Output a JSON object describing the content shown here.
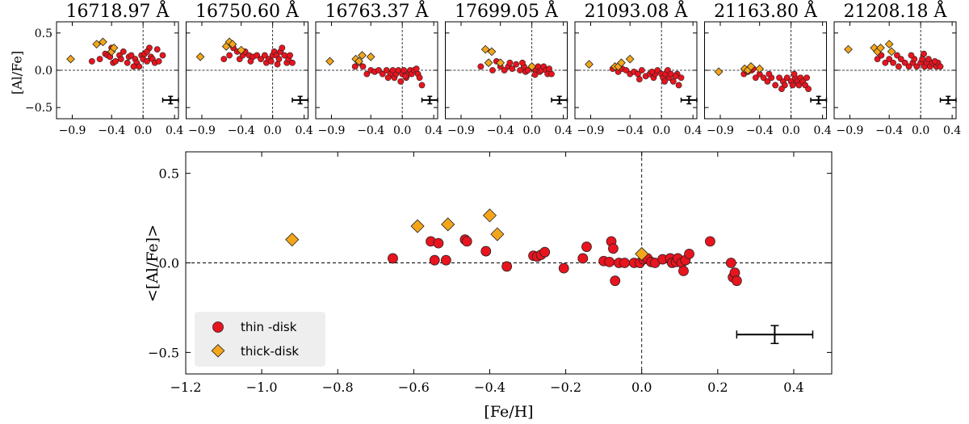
{
  "chart_data": {
    "type": "scatter",
    "colors": {
      "thin": "#e8141e",
      "thick": "#f4a61a",
      "edge": "#222222",
      "legend_bg": "#eeeeee"
    },
    "panels": [
      {
        "title": "16718.97 Å",
        "thin": [
          [
            -0.55,
            0.15
          ],
          [
            -0.48,
            0.22
          ],
          [
            -0.45,
            0.2
          ],
          [
            -0.42,
            0.18
          ],
          [
            -0.38,
            0.1
          ],
          [
            -0.35,
            0.12
          ],
          [
            -0.3,
            0.2
          ],
          [
            -0.28,
            0.15
          ],
          [
            -0.25,
            0.25
          ],
          [
            -0.2,
            0.1
          ],
          [
            -0.18,
            0.18
          ],
          [
            -0.15,
            0.2
          ],
          [
            -0.1,
            0.15
          ],
          [
            -0.08,
            0.1
          ],
          [
            -0.05,
            0.05
          ],
          [
            -0.02,
            0.2
          ],
          [
            0.0,
            0.15
          ],
          [
            0.02,
            0.22
          ],
          [
            0.05,
            0.12
          ],
          [
            0.08,
            0.3
          ],
          [
            0.1,
            0.18
          ],
          [
            0.12,
            0.15
          ],
          [
            0.15,
            0.1
          ],
          [
            0.2,
            0.12
          ],
          [
            0.25,
            0.2
          ],
          [
            -0.65,
            0.12
          ],
          [
            -0.4,
            0.3
          ],
          [
            -0.12,
            0.05
          ],
          [
            0.05,
            0.25
          ],
          [
            0.18,
            0.28
          ]
        ],
        "thick": [
          [
            -0.92,
            0.15
          ],
          [
            -0.59,
            0.35
          ],
          [
            -0.51,
            0.38
          ],
          [
            -0.4,
            0.25
          ],
          [
            -0.37,
            0.3
          ]
        ],
        "err": {
          "x": 0.35,
          "y": -0.4,
          "dx": 0.1,
          "dy": 0.05
        }
      },
      {
        "title": "16750.60 Å",
        "thin": [
          [
            -0.55,
            0.2
          ],
          [
            -0.5,
            0.3
          ],
          [
            -0.45,
            0.25
          ],
          [
            -0.42,
            0.15
          ],
          [
            -0.38,
            0.2
          ],
          [
            -0.35,
            0.25
          ],
          [
            -0.3,
            0.2
          ],
          [
            -0.25,
            0.18
          ],
          [
            -0.2,
            0.2
          ],
          [
            -0.15,
            0.15
          ],
          [
            -0.1,
            0.2
          ],
          [
            -0.08,
            0.1
          ],
          [
            -0.05,
            0.15
          ],
          [
            0.0,
            0.2
          ],
          [
            0.02,
            0.25
          ],
          [
            0.05,
            0.2
          ],
          [
            0.08,
            0.15
          ],
          [
            0.1,
            0.25
          ],
          [
            0.12,
            0.3
          ],
          [
            0.15,
            0.2
          ],
          [
            0.18,
            0.1
          ],
          [
            0.2,
            0.15
          ],
          [
            0.22,
            0.2
          ],
          [
            0.25,
            0.1
          ],
          [
            -0.62,
            0.15
          ],
          [
            -0.28,
            0.12
          ],
          [
            -0.02,
            0.12
          ],
          [
            0.06,
            0.08
          ]
        ],
        "thick": [
          [
            -0.92,
            0.18
          ],
          [
            -0.59,
            0.32
          ],
          [
            -0.55,
            0.38
          ],
          [
            -0.51,
            0.35
          ],
          [
            -0.4,
            0.27
          ]
        ],
        "err": {
          "x": 0.35,
          "y": -0.4,
          "dx": 0.1,
          "dy": 0.05
        }
      },
      {
        "title": "16763.37 Å",
        "thin": [
          [
            -0.6,
            0.05
          ],
          [
            -0.55,
            0.1
          ],
          [
            -0.5,
            0.05
          ],
          [
            -0.45,
            -0.05
          ],
          [
            -0.4,
            0.0
          ],
          [
            -0.35,
            -0.02
          ],
          [
            -0.3,
            0.0
          ],
          [
            -0.25,
            -0.05
          ],
          [
            -0.2,
            0.0
          ],
          [
            -0.15,
            -0.05
          ],
          [
            -0.1,
            -0.1
          ],
          [
            -0.08,
            -0.05
          ],
          [
            -0.05,
            0.0
          ],
          [
            0.0,
            -0.05
          ],
          [
            0.02,
            0.0
          ],
          [
            0.05,
            -0.1
          ],
          [
            0.08,
            -0.05
          ],
          [
            0.1,
            0.0
          ],
          [
            0.12,
            -0.05
          ],
          [
            0.15,
            0.0
          ],
          [
            0.2,
            -0.05
          ],
          [
            0.22,
            -0.1
          ],
          [
            0.25,
            -0.2
          ],
          [
            -0.18,
            -0.1
          ],
          [
            -0.12,
            0.0
          ],
          [
            -0.02,
            -0.15
          ],
          [
            0.04,
            -0.08
          ],
          [
            0.18,
            0.02
          ]
        ],
        "thick": [
          [
            -0.92,
            0.12
          ],
          [
            -0.59,
            0.15
          ],
          [
            -0.55,
            0.12
          ],
          [
            -0.51,
            0.2
          ],
          [
            -0.4,
            0.18
          ]
        ],
        "err": {
          "x": 0.35,
          "y": -0.4,
          "dx": 0.1,
          "dy": 0.05
        }
      },
      {
        "title": "17699.05 Å",
        "thin": [
          [
            -0.65,
            0.05
          ],
          [
            -0.55,
            0.1
          ],
          [
            -0.5,
            0.0
          ],
          [
            -0.45,
            0.12
          ],
          [
            -0.4,
            0.05
          ],
          [
            -0.35,
            0.0
          ],
          [
            -0.3,
            0.05
          ],
          [
            -0.25,
            0.02
          ],
          [
            -0.2,
            0.08
          ],
          [
            -0.15,
            0.0
          ],
          [
            -0.1,
            0.05
          ],
          [
            -0.08,
            -0.02
          ],
          [
            -0.05,
            0.0
          ],
          [
            0.0,
            0.05
          ],
          [
            0.02,
            0.02
          ],
          [
            0.05,
            0.0
          ],
          [
            0.08,
            0.05
          ],
          [
            0.1,
            -0.02
          ],
          [
            0.12,
            0.0
          ],
          [
            0.15,
            0.05
          ],
          [
            0.18,
            0.0
          ],
          [
            0.2,
            -0.05
          ],
          [
            0.22,
            0.02
          ],
          [
            0.25,
            -0.05
          ],
          [
            -0.28,
            0.1
          ],
          [
            -0.12,
            0.1
          ],
          [
            0.04,
            -0.06
          ]
        ],
        "thick": [
          [
            -0.59,
            0.28
          ],
          [
            -0.55,
            0.1
          ],
          [
            -0.51,
            0.25
          ],
          [
            -0.4,
            0.1
          ],
          [
            0.0,
            0.05
          ]
        ],
        "err": {
          "x": 0.35,
          "y": -0.4,
          "dx": 0.1,
          "dy": 0.05
        }
      },
      {
        "title": "21093.08 Å",
        "thin": [
          [
            -0.55,
            -0.02
          ],
          [
            -0.5,
            0.02
          ],
          [
            -0.45,
            0.0
          ],
          [
            -0.4,
            -0.05
          ],
          [
            -0.35,
            -0.02
          ],
          [
            -0.3,
            -0.05
          ],
          [
            -0.25,
            0.0
          ],
          [
            -0.2,
            -0.08
          ],
          [
            -0.15,
            -0.05
          ],
          [
            -0.1,
            -0.1
          ],
          [
            -0.08,
            -0.05
          ],
          [
            -0.05,
            0.0
          ],
          [
            0.0,
            -0.05
          ],
          [
            0.02,
            -0.1
          ],
          [
            0.05,
            -0.05
          ],
          [
            0.08,
            0.0
          ],
          [
            0.1,
            -0.1
          ],
          [
            0.12,
            -0.05
          ],
          [
            0.15,
            -0.15
          ],
          [
            0.2,
            -0.05
          ],
          [
            0.22,
            -0.2
          ],
          [
            0.25,
            -0.1
          ],
          [
            -0.62,
            0.02
          ],
          [
            -0.28,
            -0.12
          ],
          [
            -0.12,
            -0.02
          ],
          [
            0.04,
            -0.15
          ],
          [
            0.18,
            -0.08
          ]
        ],
        "thick": [
          [
            -0.92,
            0.08
          ],
          [
            -0.59,
            0.05
          ],
          [
            -0.55,
            0.05
          ],
          [
            -0.51,
            0.1
          ],
          [
            -0.4,
            0.15
          ]
        ],
        "err": {
          "x": 0.35,
          "y": -0.4,
          "dx": 0.1,
          "dy": 0.05
        }
      },
      {
        "title": "21163.80 Å",
        "thin": [
          [
            -0.6,
            -0.05
          ],
          [
            -0.55,
            -0.02
          ],
          [
            -0.5,
            0.0
          ],
          [
            -0.45,
            -0.1
          ],
          [
            -0.4,
            -0.05
          ],
          [
            -0.35,
            -0.1
          ],
          [
            -0.3,
            -0.15
          ],
          [
            -0.25,
            -0.1
          ],
          [
            -0.2,
            -0.2
          ],
          [
            -0.15,
            -0.1
          ],
          [
            -0.1,
            -0.15
          ],
          [
            -0.08,
            -0.2
          ],
          [
            -0.05,
            -0.1
          ],
          [
            0.0,
            -0.15
          ],
          [
            0.02,
            -0.2
          ],
          [
            0.05,
            -0.1
          ],
          [
            0.08,
            -0.15
          ],
          [
            0.1,
            -0.2
          ],
          [
            0.12,
            -0.1
          ],
          [
            0.15,
            -0.15
          ],
          [
            0.2,
            -0.1
          ],
          [
            0.22,
            -0.25
          ],
          [
            -0.48,
            0.02
          ],
          [
            -0.28,
            -0.05
          ],
          [
            -0.12,
            -0.25
          ],
          [
            0.04,
            -0.05
          ],
          [
            0.18,
            -0.2
          ]
        ],
        "thick": [
          [
            -0.92,
            -0.02
          ],
          [
            -0.59,
            0.02
          ],
          [
            -0.55,
            0.0
          ],
          [
            -0.51,
            0.05
          ],
          [
            -0.4,
            0.02
          ]
        ],
        "err": {
          "x": 0.35,
          "y": -0.4,
          "dx": 0.1,
          "dy": 0.05
        }
      },
      {
        "title": "21208.18 Å",
        "thin": [
          [
            -0.55,
            0.15
          ],
          [
            -0.5,
            0.2
          ],
          [
            -0.45,
            0.1
          ],
          [
            -0.4,
            0.15
          ],
          [
            -0.35,
            0.1
          ],
          [
            -0.3,
            0.2
          ],
          [
            -0.25,
            0.15
          ],
          [
            -0.2,
            0.1
          ],
          [
            -0.15,
            0.05
          ],
          [
            -0.1,
            0.1
          ],
          [
            -0.08,
            0.15
          ],
          [
            -0.05,
            0.05
          ],
          [
            0.0,
            0.1
          ],
          [
            0.02,
            0.15
          ],
          [
            0.05,
            0.05
          ],
          [
            0.08,
            0.1
          ],
          [
            0.1,
            0.15
          ],
          [
            0.12,
            0.05
          ],
          [
            0.15,
            0.1
          ],
          [
            0.2,
            0.05
          ],
          [
            0.22,
            0.1
          ],
          [
            0.25,
            0.05
          ],
          [
            -0.28,
            0.05
          ],
          [
            -0.12,
            0.2
          ],
          [
            0.04,
            0.22
          ],
          [
            0.18,
            0.12
          ]
        ],
        "thick": [
          [
            -0.92,
            0.28
          ],
          [
            -0.59,
            0.3
          ],
          [
            -0.55,
            0.25
          ],
          [
            -0.51,
            0.3
          ],
          [
            -0.4,
            0.35
          ],
          [
            -0.37,
            0.25
          ]
        ],
        "err": {
          "x": 0.35,
          "y": -0.4,
          "dx": 0.1,
          "dy": 0.05
        }
      }
    ],
    "small_axes": {
      "xlim": [
        -1.1,
        0.45
      ],
      "ylim": [
        -0.65,
        0.65
      ],
      "xticks": [
        -0.9,
        -0.4,
        0.0,
        0.4
      ],
      "xtick_labels": [
        "−0.9",
        "−0.4",
        "0.0",
        "0.4"
      ],
      "yticks": [
        0.5,
        0.0,
        -0.5
      ],
      "ytick_labels": [
        "0.5",
        "0.0",
        "−0.5"
      ],
      "ylabel": "[Al/Fe]"
    },
    "main": {
      "xlabel": "[Fe/H]",
      "ylabel": "<[Al/Fe]>",
      "xlim": [
        -1.2,
        0.5
      ],
      "ylim": [
        -0.62,
        0.62
      ],
      "xticks": [
        -1.2,
        -1.0,
        -0.8,
        -0.6,
        -0.4,
        -0.2,
        0.0,
        0.2,
        0.4
      ],
      "xtick_labels": [
        "−1.2",
        "−1.0",
        "−0.8",
        "−0.6",
        "−0.4",
        "−0.2",
        "0.0",
        "0.2",
        "0.4"
      ],
      "yticks": [
        0.5,
        0.0,
        -0.5
      ],
      "ytick_labels": [
        "0.5",
        "0.0",
        "−0.5"
      ],
      "thin": [
        [
          -0.655,
          0.025
        ],
        [
          -0.555,
          0.12
        ],
        [
          -0.545,
          0.015
        ],
        [
          -0.535,
          0.11
        ],
        [
          -0.515,
          0.015
        ],
        [
          -0.465,
          0.13
        ],
        [
          -0.46,
          0.12
        ],
        [
          -0.41,
          0.065
        ],
        [
          -0.355,
          -0.02
        ],
        [
          -0.285,
          0.04
        ],
        [
          -0.275,
          0.035
        ],
        [
          -0.265,
          0.045
        ],
        [
          -0.255,
          0.06
        ],
        [
          -0.205,
          -0.03
        ],
        [
          -0.155,
          0.025
        ],
        [
          -0.145,
          0.09
        ],
        [
          -0.1,
          0.01
        ],
        [
          -0.085,
          0.005
        ],
        [
          -0.08,
          0.12
        ],
        [
          -0.075,
          0.08
        ],
        [
          -0.07,
          -0.1
        ],
        [
          -0.06,
          0.0
        ],
        [
          -0.045,
          0.0
        ],
        [
          -0.02,
          0.0
        ],
        [
          -0.005,
          0.0
        ],
        [
          0.005,
          0.02
        ],
        [
          0.015,
          0.025
        ],
        [
          0.025,
          0.005
        ],
        [
          0.035,
          0.0
        ],
        [
          0.055,
          0.02
        ],
        [
          0.075,
          0.025
        ],
        [
          0.08,
          0.0
        ],
        [
          0.09,
          0.005
        ],
        [
          0.095,
          0.025
        ],
        [
          0.105,
          0.0
        ],
        [
          0.11,
          -0.045
        ],
        [
          0.115,
          0.015
        ],
        [
          0.125,
          0.05
        ],
        [
          0.18,
          0.12
        ],
        [
          0.235,
          0.0
        ],
        [
          0.24,
          -0.08
        ],
        [
          0.245,
          -0.055
        ],
        [
          0.25,
          -0.1
        ]
      ],
      "thick": [
        [
          -0.92,
          0.13
        ],
        [
          -0.59,
          0.205
        ],
        [
          -0.51,
          0.215
        ],
        [
          -0.4,
          0.265
        ],
        [
          -0.38,
          0.16
        ],
        [
          0.0,
          0.05
        ]
      ],
      "err": {
        "x": 0.35,
        "y": -0.4,
        "dx": 0.1,
        "dy": 0.05
      }
    },
    "legend": {
      "position": "lower-left",
      "items": [
        {
          "key": "thin",
          "label": "thin -disk"
        },
        {
          "key": "thick",
          "label": "thick-disk"
        }
      ]
    }
  }
}
